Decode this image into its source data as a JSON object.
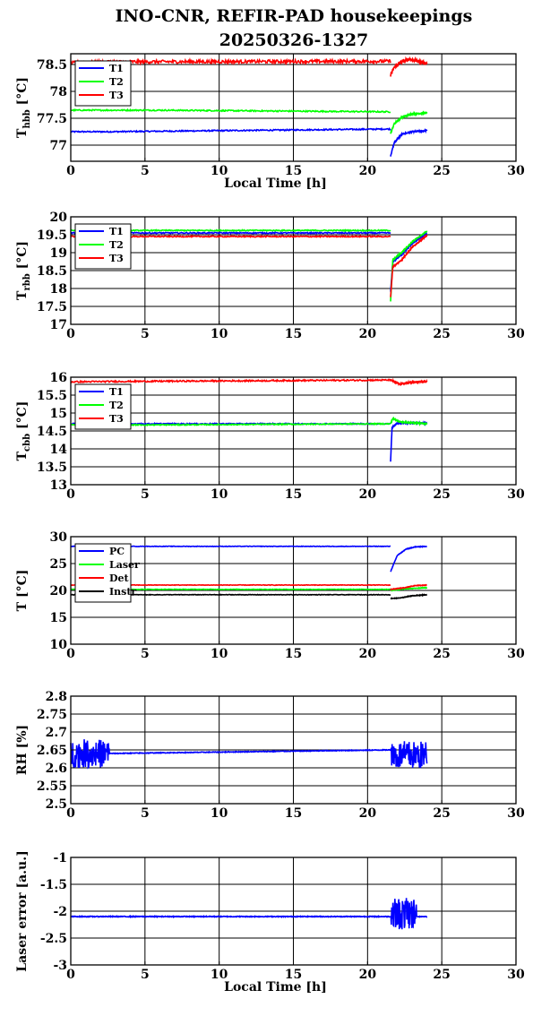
{
  "figure": {
    "title_line1": "INO-CNR, REFIR-PAD housekeepings",
    "title_line2": "20250326-1327"
  },
  "chart_data": [
    {
      "type": "line",
      "ylabel_main": "T",
      "ylabel_sub": "hbb",
      "ylabel_unit": " [°C]",
      "xlabel": "Local Time [h]",
      "xlim": [
        0,
        30
      ],
      "ylim": [
        76.7,
        78.7
      ],
      "yticks": [
        77,
        77.5,
        78,
        78.5
      ],
      "xticks": [
        0,
        5,
        10,
        15,
        20,
        25,
        30
      ],
      "grid": true,
      "legend": "top-left",
      "series": [
        {
          "name": "T1",
          "color": "#0000ff",
          "base": [
            [
              0,
              77.25
            ],
            [
              2.6,
              77.25
            ],
            [
              21.5,
              77.3
            ]
          ],
          "recovery": [
            [
              21.55,
              76.8
            ],
            [
              21.8,
              77.05
            ],
            [
              22.3,
              77.2
            ],
            [
              23,
              77.25
            ],
            [
              24,
              77.27
            ]
          ],
          "noise": 0.012
        },
        {
          "name": "T2",
          "color": "#00ff00",
          "base": [
            [
              0,
              77.65
            ],
            [
              2.6,
              77.65
            ],
            [
              6,
              77.65
            ],
            [
              21.5,
              77.62
            ]
          ],
          "recovery": [
            [
              21.55,
              77.22
            ],
            [
              21.8,
              77.4
            ],
            [
              22.3,
              77.52
            ],
            [
              23,
              77.58
            ],
            [
              24,
              77.6
            ]
          ],
          "noise": 0.012
        },
        {
          "name": "T3",
          "color": "#ff0000",
          "base": [
            [
              0,
              78.53
            ],
            [
              2.6,
              78.55
            ],
            [
              21.5,
              78.56
            ]
          ],
          "recovery": [
            [
              21.55,
              78.3
            ],
            [
              21.8,
              78.45
            ],
            [
              22.3,
              78.55
            ],
            [
              22.8,
              78.6
            ],
            [
              24,
              78.52
            ]
          ],
          "noise": 0.03
        }
      ]
    },
    {
      "type": "line",
      "ylabel_main": "T",
      "ylabel_sub": "rbb",
      "ylabel_unit": " [°C]",
      "xlabel": "",
      "xlim": [
        0,
        30
      ],
      "ylim": [
        17,
        20
      ],
      "yticks": [
        17,
        17.5,
        18,
        18.5,
        19,
        19.5,
        20
      ],
      "xticks": [
        0,
        5,
        10,
        15,
        20,
        25,
        30
      ],
      "grid": true,
      "legend": "top-left",
      "series": [
        {
          "name": "T1",
          "color": "#0000ff",
          "base": [
            [
              0,
              19.55
            ],
            [
              21.5,
              19.55
            ]
          ],
          "recovery": [
            [
              21.55,
              17.9
            ],
            [
              21.7,
              18.75
            ],
            [
              22.3,
              18.95
            ],
            [
              23,
              19.25
            ],
            [
              24,
              19.55
            ]
          ],
          "noise": 0.015
        },
        {
          "name": "T2",
          "color": "#00ff00",
          "base": [
            [
              0,
              19.62
            ],
            [
              21.5,
              19.62
            ]
          ],
          "recovery": [
            [
              21.55,
              17.65
            ],
            [
              21.7,
              18.8
            ],
            [
              22.3,
              19.0
            ],
            [
              23,
              19.3
            ],
            [
              24,
              19.6
            ]
          ],
          "noise": 0.015
        },
        {
          "name": "T3",
          "color": "#ff0000",
          "base": [
            [
              0,
              19.45
            ],
            [
              21.5,
              19.45
            ]
          ],
          "recovery": [
            [
              21.55,
              17.75
            ],
            [
              21.7,
              18.6
            ],
            [
              22.3,
              18.8
            ],
            [
              23,
              19.15
            ],
            [
              24,
              19.48
            ]
          ],
          "noise": 0.015
        }
      ]
    },
    {
      "type": "line",
      "ylabel_main": "T",
      "ylabel_sub": "cbb",
      "ylabel_unit": " [°C]",
      "xlabel": "",
      "xlim": [
        0,
        30
      ],
      "ylim": [
        13,
        16
      ],
      "yticks": [
        13,
        13.5,
        14,
        14.5,
        15,
        15.5,
        16
      ],
      "xticks": [
        0,
        5,
        10,
        15,
        20,
        25,
        30
      ],
      "grid": true,
      "legend": "top-left",
      "series": [
        {
          "name": "T1",
          "color": "#0000ff",
          "base": [
            [
              0,
              14.7
            ],
            [
              21.5,
              14.7
            ]
          ],
          "recovery": [
            [
              21.55,
              13.65
            ],
            [
              21.65,
              14.6
            ],
            [
              22,
              14.72
            ],
            [
              24,
              14.72
            ]
          ],
          "noise": 0.015
        },
        {
          "name": "T2",
          "color": "#00ff00",
          "base": [
            [
              0,
              14.67
            ],
            [
              6,
              14.67
            ],
            [
              21.5,
              14.7
            ]
          ],
          "recovery": [
            [
              21.55,
              14.7
            ],
            [
              21.7,
              14.85
            ],
            [
              22.2,
              14.75
            ],
            [
              24,
              14.7
            ]
          ],
          "noise": 0.015
        },
        {
          "name": "T3",
          "color": "#ff0000",
          "base": [
            [
              0,
              15.87
            ],
            [
              2.6,
              15.88
            ],
            [
              21.5,
              15.92
            ]
          ],
          "recovery": [
            [
              21.55,
              15.92
            ],
            [
              22.2,
              15.8
            ],
            [
              22.8,
              15.85
            ],
            [
              24,
              15.88
            ]
          ],
          "noise": 0.02
        }
      ]
    },
    {
      "type": "line",
      "ylabel_main": "T [°C]",
      "ylabel_sub": "",
      "ylabel_unit": "",
      "xlabel": "",
      "xlim": [
        0,
        30
      ],
      "ylim": [
        10,
        30
      ],
      "yticks": [
        10,
        15,
        20,
        25,
        30
      ],
      "xticks": [
        0,
        5,
        10,
        15,
        20,
        25,
        30
      ],
      "grid": true,
      "legend": "top-left",
      "series": [
        {
          "name": "PC",
          "color": "#0000ff",
          "base": [
            [
              0,
              28.2
            ],
            [
              21.5,
              28.2
            ]
          ],
          "recovery": [
            [
              21.55,
              23.5
            ],
            [
              22,
              26.5
            ],
            [
              22.6,
              27.7
            ],
            [
              23.2,
              28.1
            ],
            [
              24,
              28.2
            ]
          ],
          "noise": 0.05
        },
        {
          "name": "Laser",
          "color": "#00ff00",
          "base": [
            [
              0,
              20.2
            ],
            [
              21.5,
              20.2
            ]
          ],
          "recovery": [
            [
              21.55,
              20.0
            ],
            [
              22.5,
              20.3
            ],
            [
              24,
              20.5
            ]
          ],
          "noise": 0.05
        },
        {
          "name": "Det",
          "color": "#ff0000",
          "base": [
            [
              0,
              21.0
            ],
            [
              21.5,
              21.0
            ]
          ],
          "recovery": [
            [
              21.55,
              20.2
            ],
            [
              22.5,
              20.5
            ],
            [
              23.2,
              20.9
            ],
            [
              24,
              21.0
            ]
          ],
          "noise": 0.05
        },
        {
          "name": "Instr",
          "color": "#000000",
          "base": [
            [
              0,
              19.2
            ],
            [
              21.5,
              19.2
            ]
          ],
          "recovery": [
            [
              21.55,
              18.5
            ],
            [
              22.2,
              18.6
            ],
            [
              23,
              19.0
            ],
            [
              24,
              19.2
            ]
          ],
          "noise": 0.05
        }
      ]
    },
    {
      "type": "line",
      "ylabel_main": "RH [%]",
      "ylabel_sub": "",
      "ylabel_unit": "",
      "xlabel": "",
      "xlim": [
        0,
        30
      ],
      "ylim": [
        2.5,
        2.8
      ],
      "yticks": [
        2.5,
        2.55,
        2.6,
        2.65,
        2.7,
        2.75,
        2.8
      ],
      "yticklabels": [
        "2.5",
        "2.55",
        "2.6",
        "2.65",
        "2.7",
        "2.75",
        "2.8"
      ],
      "xticks": [
        0,
        5,
        10,
        15,
        20,
        25,
        30
      ],
      "grid": true,
      "legend": "none",
      "series": [
        {
          "name": "",
          "color": "#0000ff",
          "base": [
            [
              0,
              2.64
            ],
            [
              2.6,
              2.64
            ],
            [
              21.5,
              2.65
            ]
          ],
          "noisy_ranges": [
            [
              0,
              2.6,
              2.64,
              0.04
            ],
            [
              21.6,
              24,
              2.635,
              0.04
            ]
          ],
          "noise": 0.001
        }
      ]
    },
    {
      "type": "line",
      "ylabel_main": "Laser error [a.u.]",
      "ylabel_sub": "",
      "ylabel_unit": "",
      "xlabel": "Local Time [h]",
      "xlim": [
        0,
        30
      ],
      "ylim": [
        -3,
        -1
      ],
      "yticks": [
        -3,
        -2.5,
        -2,
        -1.5,
        -1
      ],
      "xticks": [
        0,
        5,
        10,
        15,
        20,
        25,
        30
      ],
      "grid": true,
      "legend": "none",
      "series": [
        {
          "name": "",
          "color": "#0000ff",
          "base": [
            [
              0,
              -2.1
            ],
            [
              21.5,
              -2.1
            ],
            [
              24,
              -2.1
            ]
          ],
          "noisy_ranges": [
            [
              21.6,
              23.3,
              -2.05,
              0.3
            ]
          ],
          "noise": 0.008
        }
      ]
    }
  ]
}
